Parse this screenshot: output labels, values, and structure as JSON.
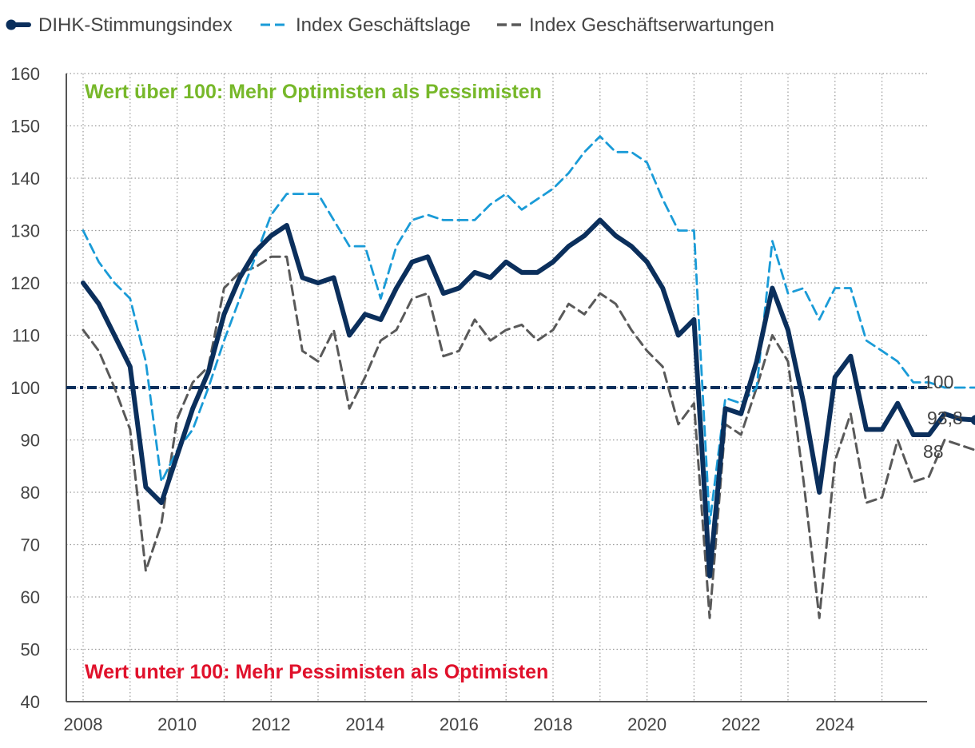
{
  "chart_data": {
    "type": "line",
    "title": "",
    "xlabel": "",
    "ylabel": "",
    "ylim": [
      40,
      160
    ],
    "yticks": [
      40,
      50,
      60,
      70,
      80,
      90,
      100,
      110,
      120,
      130,
      140,
      150,
      160
    ],
    "xtick_labels": [
      "2008",
      "2010",
      "2012",
      "2014",
      "2016",
      "2018",
      "2020",
      "2022",
      "2024"
    ],
    "x_start": 2008,
    "periods_per_year": 3,
    "reference_line": {
      "value": 100,
      "label": "100"
    },
    "annotations": {
      "above": "Wert über 100: Mehr Optimisten als Pessimisten",
      "below": "Wert unter 100: Mehr Pessimisten als Optimisten"
    },
    "end_labels": [
      "93,8",
      "88"
    ],
    "series": [
      {
        "name": "DIHK-Stimmungsindex",
        "color": "#0b2f5c",
        "values": [
          120,
          116,
          110,
          104,
          81,
          78,
          87,
          96,
          103,
          114,
          121,
          126,
          129,
          131,
          121,
          120,
          121,
          110,
          114,
          113,
          119,
          124,
          125,
          118,
          119,
          122,
          121,
          124,
          122,
          122,
          124,
          127,
          129,
          132,
          129,
          127,
          124,
          119,
          110,
          113,
          64,
          96,
          95,
          105,
          119,
          111,
          97,
          80,
          102,
          106,
          92,
          92,
          97,
          91,
          91,
          95,
          94,
          93.8
        ]
      },
      {
        "name": "Index Geschäftslage",
        "color": "#1a9bd7",
        "values": [
          130,
          124,
          120,
          117,
          105,
          82,
          88,
          92,
          100,
          109,
          117,
          125,
          133,
          137,
          137,
          137,
          132,
          127,
          127,
          117,
          127,
          132,
          133,
          132,
          132,
          132,
          135,
          137,
          134,
          136,
          138,
          141,
          145,
          148,
          145,
          145,
          143,
          136,
          130,
          130,
          74,
          98,
          97,
          100,
          128,
          118,
          119,
          113,
          119,
          119,
          109,
          107,
          105,
          101,
          101,
          100,
          100,
          100
        ]
      },
      {
        "name": "Index Geschäftserwartungen",
        "color": "#595959",
        "values": [
          111,
          107,
          100,
          92,
          65,
          74,
          94,
          101,
          104,
          119,
          122,
          123,
          125,
          125,
          107,
          105,
          111,
          96,
          102,
          109,
          111,
          117,
          118,
          106,
          107,
          113,
          109,
          111,
          112,
          109,
          111,
          116,
          114,
          118,
          116,
          111,
          107,
          104,
          93,
          97,
          56,
          93,
          91,
          100,
          110,
          105,
          82,
          56,
          86,
          95,
          78,
          79,
          90,
          82,
          83,
          90,
          89,
          88
        ]
      }
    ]
  }
}
